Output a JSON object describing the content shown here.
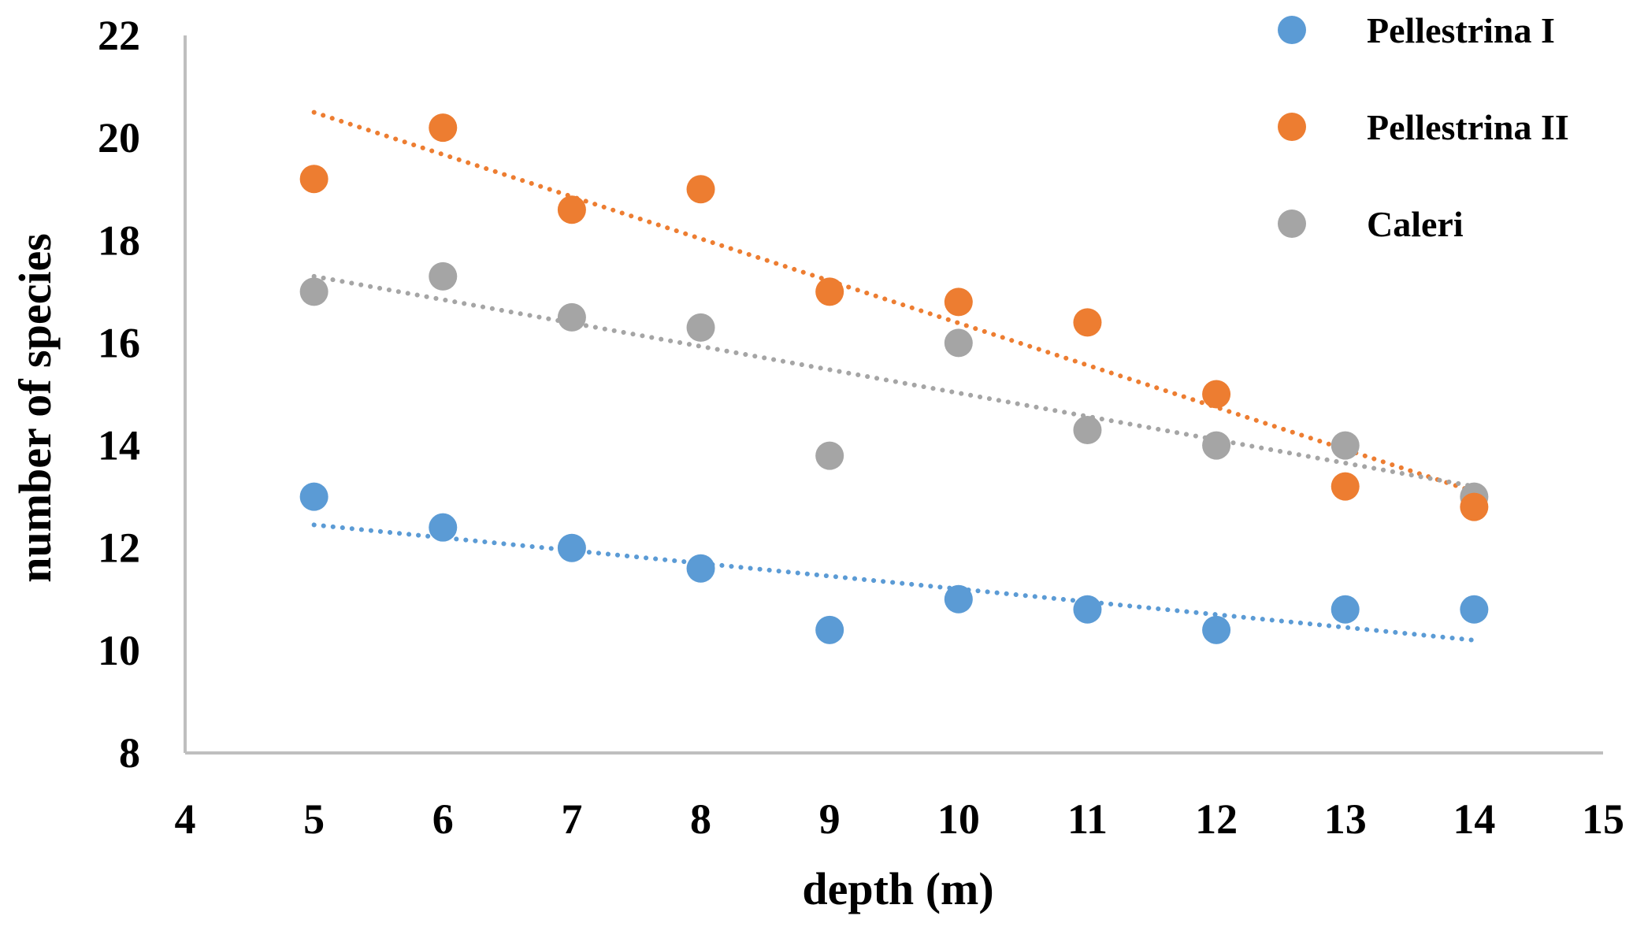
{
  "chart_data": {
    "type": "scatter",
    "title": "",
    "xlabel": "depth (m)",
    "ylabel": "number of species",
    "xlim": [
      4,
      15
    ],
    "ylim": [
      8,
      22
    ],
    "xticks": [
      4,
      5,
      6,
      7,
      8,
      9,
      10,
      11,
      12,
      13,
      14,
      15
    ],
    "yticks": [
      8,
      10,
      12,
      14,
      16,
      18,
      20,
      22
    ],
    "grid": false,
    "legend_position": "top-right",
    "x": [
      5,
      6,
      7,
      8,
      9,
      10,
      11,
      12,
      13,
      14
    ],
    "series": [
      {
        "name": "Pellestrina I",
        "color": "#5B9BD5",
        "values": [
          13,
          12.4,
          12,
          11.6,
          10.4,
          11,
          10.8,
          10.4,
          10.8,
          10.8
        ],
        "trendline": {
          "type": "linear",
          "style": "dotted",
          "start": [
            5,
            12.45
          ],
          "end": [
            14,
            10.2
          ]
        }
      },
      {
        "name": "Pellestrina II",
        "color": "#ED7D31",
        "values": [
          19.2,
          20.2,
          18.6,
          19,
          17,
          16.8,
          16.4,
          15,
          13.2,
          12.8
        ],
        "trendline": {
          "type": "linear",
          "style": "dotted",
          "start": [
            5,
            20.5
          ],
          "end": [
            14,
            13.1
          ]
        }
      },
      {
        "name": "Caleri",
        "color": "#A5A5A5",
        "values": [
          17,
          17.3,
          16.5,
          16.3,
          13.8,
          16,
          14.3,
          14,
          14,
          13
        ],
        "trendline": {
          "type": "linear",
          "style": "dotted",
          "start": [
            5,
            17.3
          ],
          "end": [
            14,
            13.2
          ]
        }
      }
    ]
  }
}
